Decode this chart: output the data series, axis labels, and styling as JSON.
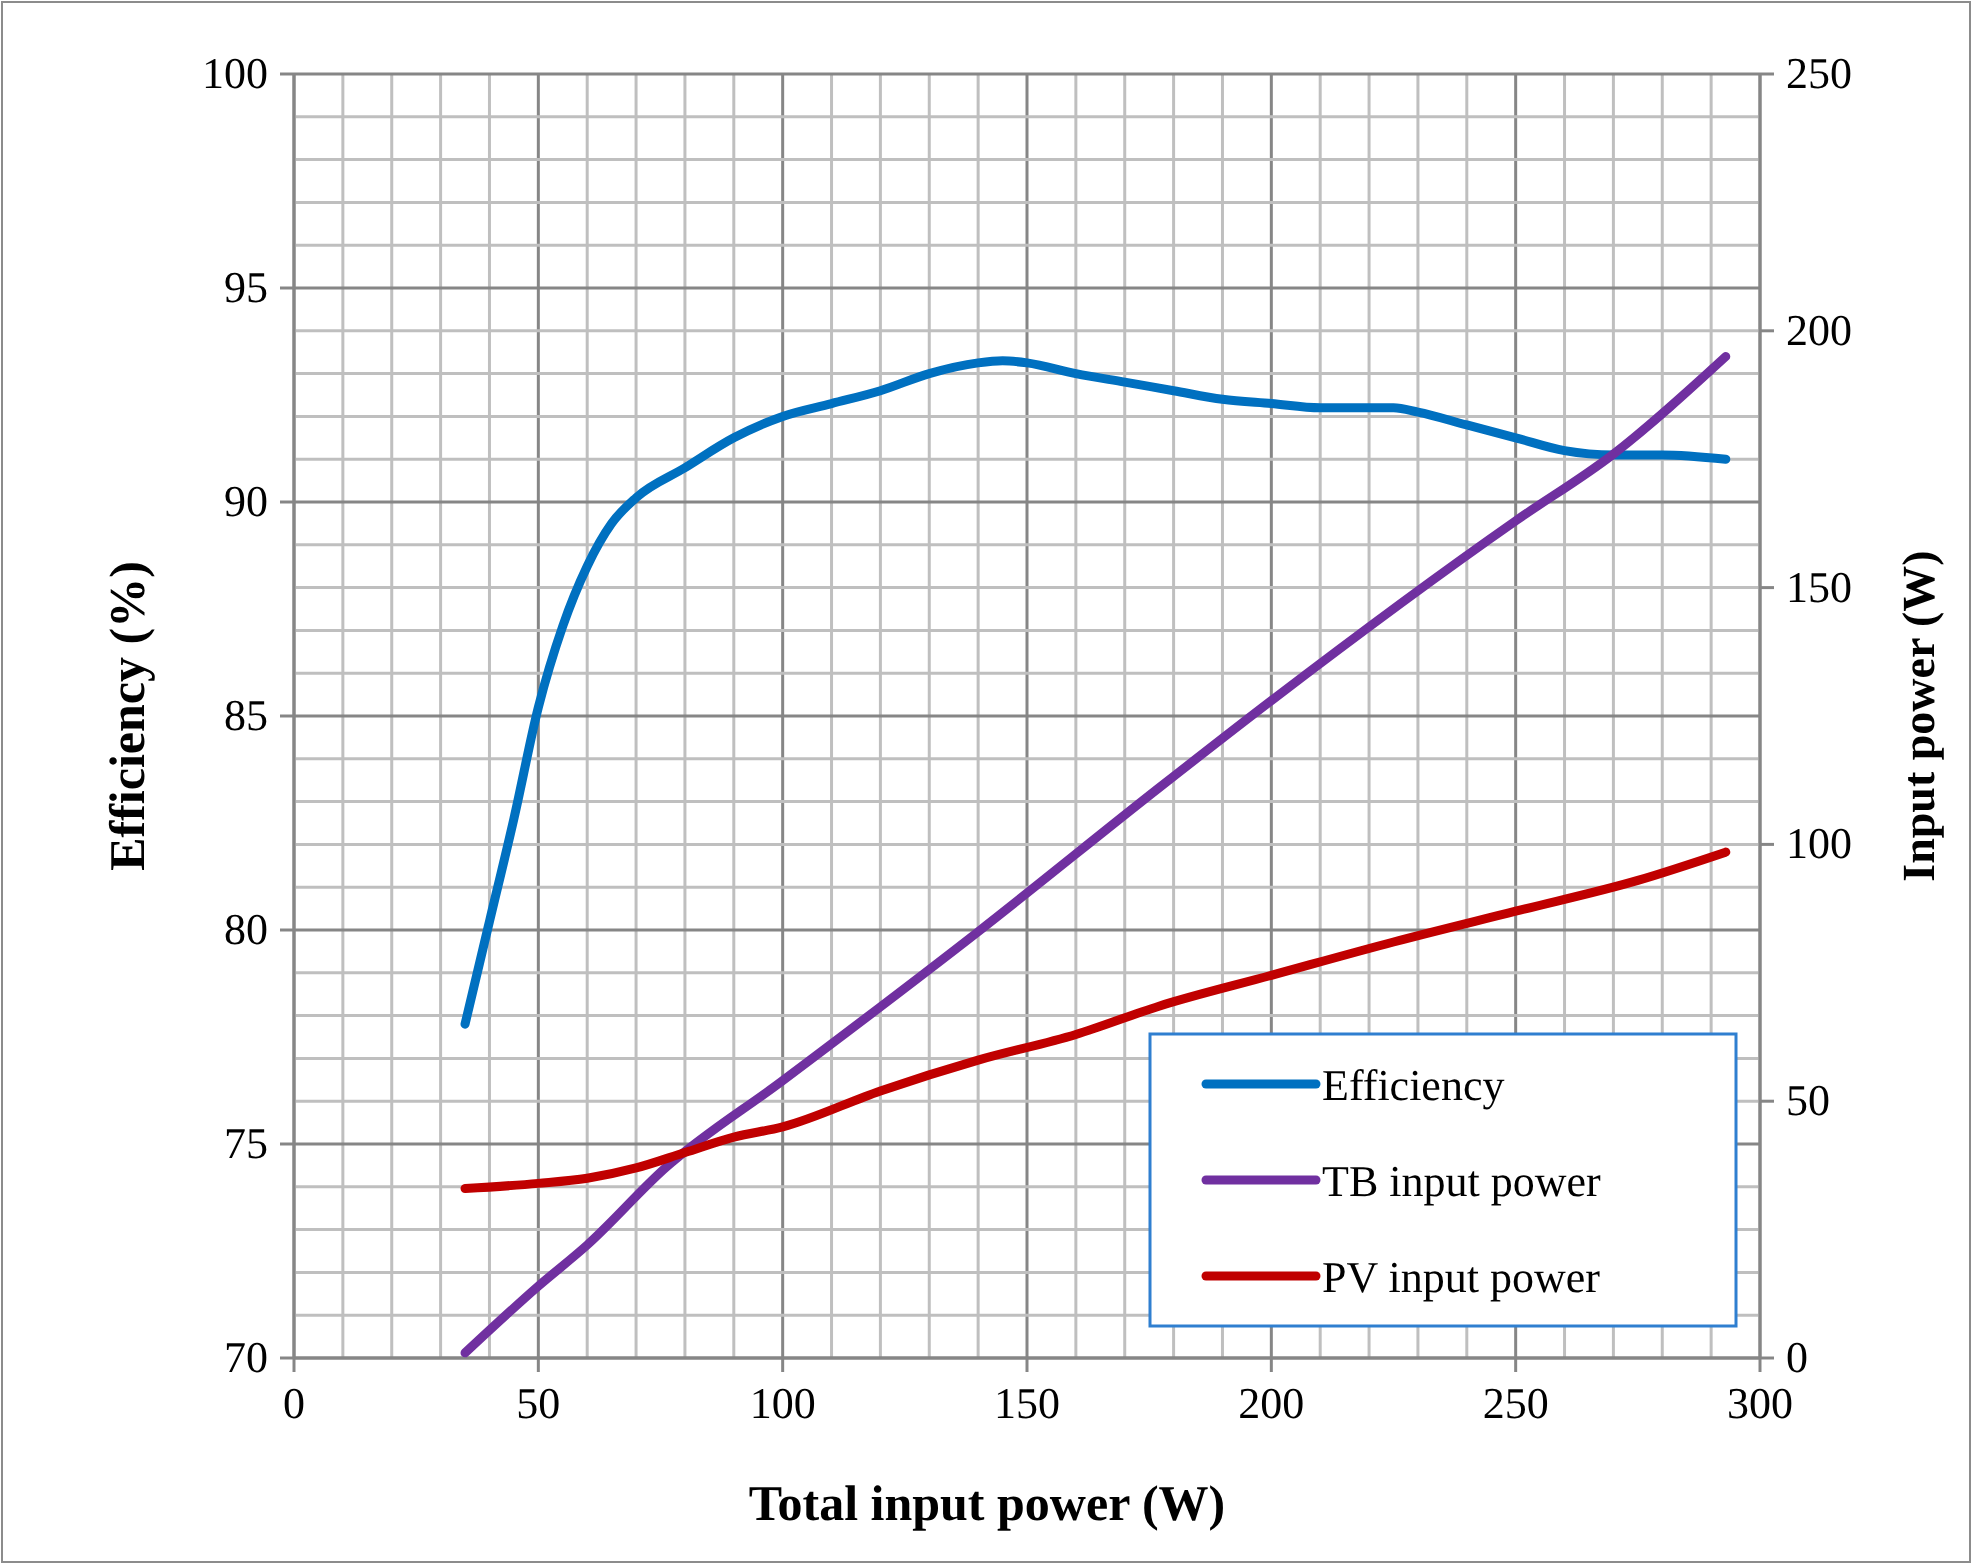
{
  "chart_data": {
    "type": "line",
    "xlabel": "Total input power (W)",
    "ylabel": "Efficiency (%)",
    "y2label": "Input power (W)",
    "xlim": [
      0,
      300
    ],
    "xticks": [
      0,
      {
        "value": 10,
        "label": null
      },
      {
        "value": 20,
        "label": null
      },
      {
        "value": 30,
        "label": null
      },
      {
        "value": 40,
        "label": null
      },
      50,
      {
        "value": 60,
        "label": null
      },
      {
        "value": 70,
        "label": null
      },
      {
        "value": 80,
        "label": null
      },
      {
        "value": 90,
        "label": null
      },
      100,
      {
        "value": 110,
        "label": null
      },
      {
        "value": 120,
        "label": null
      },
      {
        "value": 130,
        "label": null
      },
      {
        "value": 140,
        "label": null
      },
      150,
      {
        "value": 160,
        "label": null
      },
      {
        "value": 170,
        "label": null
      },
      {
        "value": 180,
        "label": null
      },
      {
        "value": 190,
        "label": null
      },
      200,
      {
        "value": 210,
        "label": null
      },
      {
        "value": 220,
        "label": null
      },
      {
        "value": 230,
        "label": null
      },
      {
        "value": 240,
        "label": null
      },
      250,
      {
        "value": 260,
        "label": null
      },
      {
        "value": 270,
        "label": null
      },
      {
        "value": 280,
        "label": null
      },
      {
        "value": 290,
        "label": null
      },
      300
    ],
    "ylim": [
      70,
      100
    ],
    "yticks": [
      70,
      {
        "value": 71,
        "label": null
      },
      {
        "value": 72,
        "label": null
      },
      {
        "value": 73,
        "label": null
      },
      {
        "value": 74,
        "label": null
      },
      75,
      {
        "value": 76,
        "label": null
      },
      {
        "value": 77,
        "label": null
      },
      {
        "value": 78,
        "label": null
      },
      {
        "value": 79,
        "label": null
      },
      80,
      {
        "value": 81,
        "label": null
      },
      {
        "value": 82,
        "label": null
      },
      {
        "value": 83,
        "label": null
      },
      {
        "value": 84,
        "label": null
      },
      85,
      {
        "value": 86,
        "label": null
      },
      {
        "value": 87,
        "label": null
      },
      {
        "value": 88,
        "label": null
      },
      {
        "value": 89,
        "label": null
      },
      90,
      {
        "value": 91,
        "label": null
      },
      {
        "value": 92,
        "label": null
      },
      {
        "value": 93,
        "label": null
      },
      {
        "value": 94,
        "label": null
      },
      95,
      {
        "value": 96,
        "label": null
      },
      {
        "value": 97,
        "label": null
      },
      {
        "value": 98,
        "label": null
      },
      {
        "value": 99,
        "label": null
      },
      100
    ],
    "y2lim": [
      0,
      250
    ],
    "y2ticks": [
      0,
      50,
      100,
      150,
      200,
      250
    ],
    "grid": true,
    "legend": "bottom right",
    "marker": "none",
    "line_style": "solid",
    "series": [
      {
        "name": "Efficiency",
        "color": "#0070c0",
        "x": [
          35,
          40,
          45,
          50,
          55,
          60,
          65,
          70,
          80,
          90,
          100,
          110,
          120,
          130,
          140,
          145,
          150,
          160,
          170,
          180,
          190,
          200,
          210,
          220,
          225,
          230,
          240,
          250,
          260,
          270,
          280,
          293
        ],
        "values": [
          77.8,
          80.2,
          82.6,
          85.2,
          87.1,
          88.5,
          89.5,
          90.1,
          90.8,
          91.5,
          92.0,
          92.3,
          92.6,
          93.0,
          93.25,
          93.3,
          93.25,
          93.0,
          92.8,
          92.6,
          92.4,
          92.3,
          92.2,
          92.2,
          92.2,
          92.1,
          91.8,
          91.5,
          91.2,
          91.1,
          91.1,
          91.0
        ]
      },
      {
        "name": "TB input power",
        "color": "#7030a0",
        "axis": "y2",
        "x": [
          35,
          50,
          60,
          76,
          100,
          140,
          177,
          200,
          250,
          270,
          293
        ],
        "values": [
          1,
          14,
          22,
          37,
          54,
          83,
          111,
          128,
          163,
          176,
          195
        ]
      },
      {
        "name": "PV input power",
        "color": "#c00000",
        "axis": "y2",
        "x": [
          35,
          50,
          60,
          70,
          80,
          90,
          100,
          120,
          140,
          160,
          177,
          200,
          225,
          250,
          275,
          293
        ],
        "values": [
          33,
          34,
          35,
          37,
          40,
          43,
          45,
          52,
          58,
          63,
          68.5,
          74.5,
          81,
          87,
          93,
          98.5
        ]
      }
    ]
  }
}
